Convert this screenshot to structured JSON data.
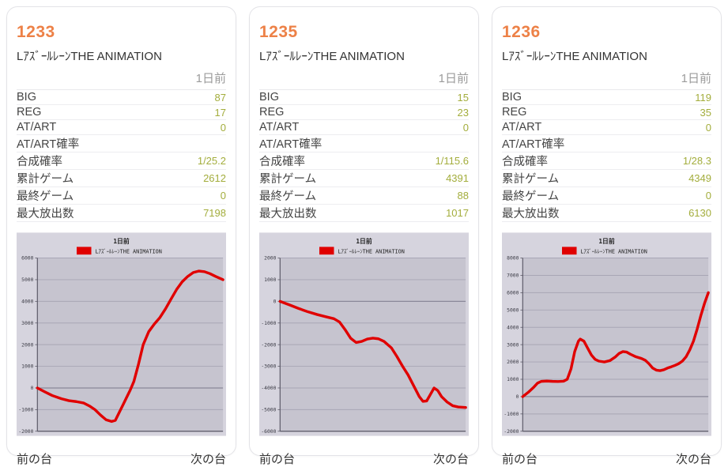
{
  "footer": {
    "prev_label": "前の台",
    "next_label": "次の台"
  },
  "cards": [
    {
      "machine_number": "1233",
      "machine_name": "LｱｽﾞｰﾙﾚｰﾝTHE ANIMATION",
      "date_label": "1日前",
      "stats": [
        {
          "label": "BIG",
          "value": "87"
        },
        {
          "label": "REG",
          "value": "17"
        },
        {
          "label": "AT/ART",
          "value": "0"
        },
        {
          "label": "AT/ART確率",
          "value": ""
        },
        {
          "label": "合成確率",
          "value": "1/25.2"
        },
        {
          "label": "累計ゲーム",
          "value": "2612"
        },
        {
          "label": "最終ゲーム",
          "value": "0"
        },
        {
          "label": "最大放出数",
          "value": "7198"
        }
      ]
    },
    {
      "machine_number": "1235",
      "machine_name": "LｱｽﾞｰﾙﾚｰﾝTHE ANIMATION",
      "date_label": "1日前",
      "stats": [
        {
          "label": "BIG",
          "value": "15"
        },
        {
          "label": "REG",
          "value": "23"
        },
        {
          "label": "AT/ART",
          "value": "0"
        },
        {
          "label": "AT/ART確率",
          "value": ""
        },
        {
          "label": "合成確率",
          "value": "1/115.6"
        },
        {
          "label": "累計ゲーム",
          "value": "4391"
        },
        {
          "label": "最終ゲーム",
          "value": "88"
        },
        {
          "label": "最大放出数",
          "value": "1017"
        }
      ]
    },
    {
      "machine_number": "1236",
      "machine_name": "LｱｽﾞｰﾙﾚｰﾝTHE ANIMATION",
      "date_label": "1日前",
      "stats": [
        {
          "label": "BIG",
          "value": "119"
        },
        {
          "label": "REG",
          "value": "35"
        },
        {
          "label": "AT/ART",
          "value": "0"
        },
        {
          "label": "AT/ART確率",
          "value": ""
        },
        {
          "label": "合成確率",
          "value": "1/28.3"
        },
        {
          "label": "累計ゲーム",
          "value": "4349"
        },
        {
          "label": "最終ゲーム",
          "value": "0"
        },
        {
          "label": "最大放出数",
          "value": "6130"
        }
      ]
    }
  ],
  "chart_data": [
    {
      "type": "line",
      "machine": "1233",
      "title": "1日前",
      "legend": "LｱｽﾞｰﾙﾚｰﾝTHE ANIMATION",
      "legend_position": "top",
      "grid": true,
      "ylim": [
        -2000,
        6000
      ],
      "ytick_interval": 1000,
      "x_range_fraction": [
        0,
        1
      ],
      "points": [
        [
          0,
          0
        ],
        [
          0.04,
          -180
        ],
        [
          0.08,
          -350
        ],
        [
          0.13,
          -500
        ],
        [
          0.17,
          -590
        ],
        [
          0.21,
          -630
        ],
        [
          0.25,
          -700
        ],
        [
          0.28,
          -830
        ],
        [
          0.31,
          -1000
        ],
        [
          0.34,
          -1250
        ],
        [
          0.37,
          -1470
        ],
        [
          0.4,
          -1550
        ],
        [
          0.42,
          -1500
        ],
        [
          0.44,
          -1150
        ],
        [
          0.46,
          -800
        ],
        [
          0.48,
          -450
        ],
        [
          0.5,
          -100
        ],
        [
          0.52,
          300
        ],
        [
          0.545,
          1100
        ],
        [
          0.57,
          2000
        ],
        [
          0.6,
          2600
        ],
        [
          0.63,
          2950
        ],
        [
          0.66,
          3250
        ],
        [
          0.69,
          3650
        ],
        [
          0.72,
          4100
        ],
        [
          0.75,
          4550
        ],
        [
          0.78,
          4900
        ],
        [
          0.81,
          5150
        ],
        [
          0.84,
          5330
        ],
        [
          0.87,
          5400
        ],
        [
          0.9,
          5370
        ],
        [
          0.93,
          5280
        ],
        [
          0.96,
          5150
        ],
        [
          1,
          5000
        ]
      ]
    },
    {
      "type": "line",
      "machine": "1235",
      "title": "1日前",
      "legend": "LｱｽﾞｰﾙﾚｰﾝTHE ANIMATION",
      "legend_position": "top",
      "grid": true,
      "ylim": [
        -6000,
        2000
      ],
      "ytick_interval": 1000,
      "x_range_fraction": [
        0,
        1
      ],
      "points": [
        [
          0,
          0
        ],
        [
          0.05,
          -160
        ],
        [
          0.1,
          -330
        ],
        [
          0.15,
          -480
        ],
        [
          0.2,
          -610
        ],
        [
          0.25,
          -720
        ],
        [
          0.29,
          -800
        ],
        [
          0.32,
          -950
        ],
        [
          0.35,
          -1300
        ],
        [
          0.38,
          -1700
        ],
        [
          0.41,
          -1900
        ],
        [
          0.44,
          -1850
        ],
        [
          0.47,
          -1740
        ],
        [
          0.5,
          -1700
        ],
        [
          0.53,
          -1730
        ],
        [
          0.56,
          -1850
        ],
        [
          0.6,
          -2150
        ],
        [
          0.63,
          -2550
        ],
        [
          0.66,
          -3000
        ],
        [
          0.69,
          -3400
        ],
        [
          0.72,
          -3900
        ],
        [
          0.75,
          -4400
        ],
        [
          0.77,
          -4620
        ],
        [
          0.79,
          -4600
        ],
        [
          0.81,
          -4300
        ],
        [
          0.83,
          -4000
        ],
        [
          0.85,
          -4120
        ],
        [
          0.87,
          -4400
        ],
        [
          0.9,
          -4650
        ],
        [
          0.93,
          -4820
        ],
        [
          0.96,
          -4880
        ],
        [
          1,
          -4900
        ]
      ]
    },
    {
      "type": "line",
      "machine": "1236",
      "title": "1日前",
      "legend": "LｱｽﾞｰﾙﾚｰﾝTHE ANIMATION",
      "legend_position": "top",
      "grid": true,
      "ylim": [
        -2000,
        8000
      ],
      "ytick_interval": 1000,
      "x_range_fraction": [
        0,
        1
      ],
      "points": [
        [
          0,
          0
        ],
        [
          0.03,
          250
        ],
        [
          0.06,
          550
        ],
        [
          0.08,
          780
        ],
        [
          0.1,
          880
        ],
        [
          0.13,
          900
        ],
        [
          0.16,
          880
        ],
        [
          0.19,
          870
        ],
        [
          0.22,
          890
        ],
        [
          0.24,
          1000
        ],
        [
          0.26,
          1600
        ],
        [
          0.28,
          2600
        ],
        [
          0.3,
          3200
        ],
        [
          0.31,
          3320
        ],
        [
          0.33,
          3200
        ],
        [
          0.35,
          2800
        ],
        [
          0.37,
          2400
        ],
        [
          0.39,
          2150
        ],
        [
          0.41,
          2050
        ],
        [
          0.44,
          2000
        ],
        [
          0.47,
          2080
        ],
        [
          0.5,
          2300
        ],
        [
          0.52,
          2500
        ],
        [
          0.54,
          2600
        ],
        [
          0.56,
          2570
        ],
        [
          0.58,
          2450
        ],
        [
          0.61,
          2300
        ],
        [
          0.64,
          2200
        ],
        [
          0.66,
          2100
        ],
        [
          0.68,
          1900
        ],
        [
          0.7,
          1650
        ],
        [
          0.72,
          1530
        ],
        [
          0.74,
          1500
        ],
        [
          0.76,
          1550
        ],
        [
          0.78,
          1650
        ],
        [
          0.8,
          1720
        ],
        [
          0.82,
          1800
        ],
        [
          0.84,
          1900
        ],
        [
          0.86,
          2050
        ],
        [
          0.88,
          2300
        ],
        [
          0.9,
          2700
        ],
        [
          0.92,
          3200
        ],
        [
          0.94,
          3900
        ],
        [
          0.96,
          4700
        ],
        [
          0.98,
          5400
        ],
        [
          1,
          6000
        ]
      ]
    }
  ],
  "colors": {
    "accent_orange": "#ed8147",
    "value_green": "#a3ad3c",
    "line_red": "#e00000",
    "chart_bg": "#d6d4de",
    "plot_bg": "#c6c4cf",
    "grid_line": "#a8a6b5",
    "zero_line": "#8a8899",
    "axis": "#5a5866",
    "chart_text": "#222222",
    "date_gray": "#9b9b9b"
  }
}
